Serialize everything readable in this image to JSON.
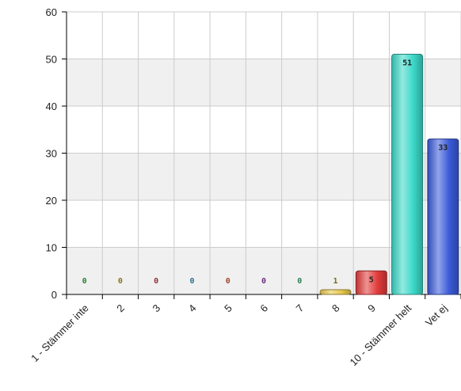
{
  "chart_data": {
    "type": "bar",
    "title": "",
    "xlabel": "",
    "ylabel": "",
    "ylim": [
      0,
      60
    ],
    "yticks": [
      0,
      10,
      20,
      30,
      40,
      50,
      60
    ],
    "grid": true,
    "legend": "none",
    "categories": [
      "1 - Stämmer inte",
      "2",
      "3",
      "4",
      "5",
      "6",
      "7",
      "8",
      "9",
      "10 - Stämmer helt",
      "Vet ej"
    ],
    "values": [
      0,
      0,
      0,
      0,
      0,
      0,
      0,
      1,
      5,
      51,
      33
    ],
    "labels": [
      "0",
      "0",
      "0",
      "0",
      "0",
      "0",
      "0",
      "1",
      "5",
      "51",
      "33"
    ],
    "colors": [
      "#3a8a3a",
      "#8a8a2a",
      "#8a3a3a",
      "#3a6a8a",
      "#9a4a3a",
      "#6a3a7a",
      "#3a7a5a",
      "#e6c84a",
      "#e23a3a",
      "#3ad8c8",
      "#3a5ad8"
    ],
    "label_colors": [
      "#2e7d32",
      "#827717",
      "#8d3030",
      "#2f6f8f",
      "#a0442a",
      "#6a2e7a",
      "#2e7d55",
      "#7a6a10",
      "#222222",
      "#222222",
      "#222222"
    ]
  }
}
